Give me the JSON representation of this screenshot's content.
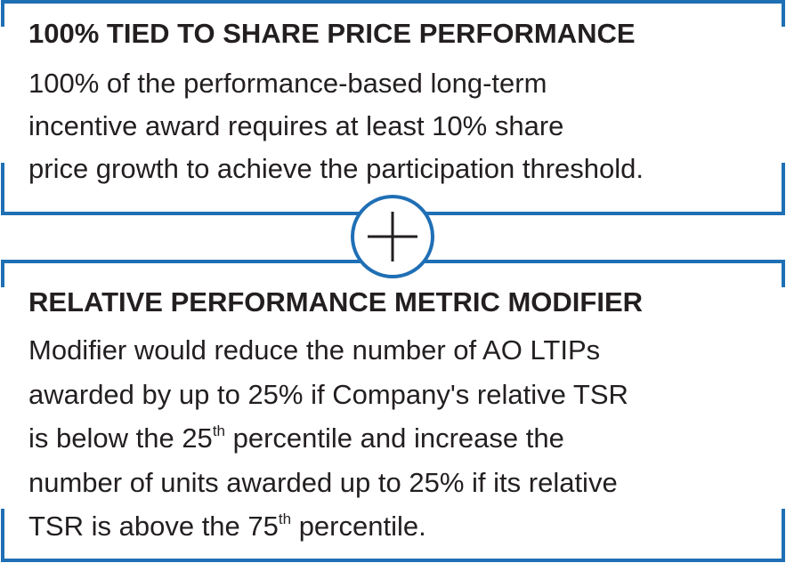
{
  "sections": [
    {
      "title": "100% TIED TO SHARE PRICE PERFORMANCE",
      "lines": [
        [
          "100% of the performance-based long-term"
        ],
        [
          "incentive award requires at least 10% share"
        ],
        [
          "price growth to achieve the participation threshold."
        ]
      ]
    },
    {
      "title": "RELATIVE PERFORMANCE METRIC MODIFIER",
      "lines": [
        [
          "Modifier would reduce the number of AO LTIPs"
        ],
        [
          "awarded by up to 25% if Company's relative TSR"
        ],
        [
          "is below the 25",
          "th",
          " percentile and increase the"
        ],
        [
          "number of units awarded up to 25% if its relative"
        ],
        [
          "TSR is above the 75",
          "th",
          " percentile."
        ]
      ]
    }
  ]
}
